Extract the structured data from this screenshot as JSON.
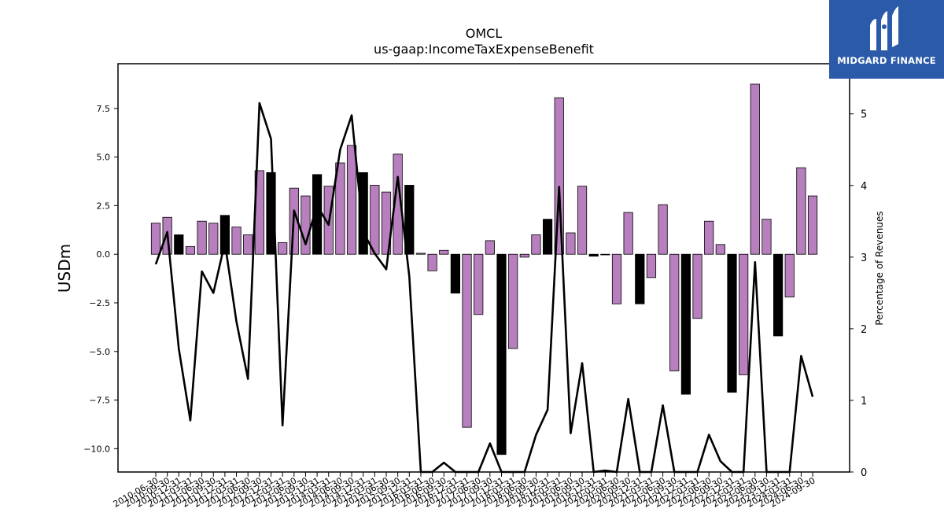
{
  "brand": {
    "name": "MIDGARD FINANCE"
  },
  "chart_data": {
    "type": "bar",
    "title": "OMCL",
    "subtitle": "us-gaap:IncomeTaxExpenseBenefit",
    "ylabel": "USDm",
    "y2label": "Percentage of Revenues",
    "ylim": [
      -11.2,
      9.8
    ],
    "y2lim": [
      0,
      5.7
    ],
    "yticks": [
      -10.0,
      -7.5,
      -5.0,
      -2.5,
      0.0,
      2.5,
      5.0,
      7.5
    ],
    "y2ticks": [
      0,
      1,
      2,
      3,
      4,
      5
    ],
    "colors": {
      "annual": "#000000",
      "quarter": "#b77fbd",
      "line": "#000000"
    },
    "categories": [
      "2010-06-30",
      "2010-09-30",
      "2010-12-31",
      "2011-03-31",
      "2011-06-30",
      "2011-09-30",
      "2011-12-31",
      "2012-03-31",
      "2012-06-30",
      "2012-09-30",
      "2012-12-31",
      "2013-03-31",
      "2013-06-30",
      "2013-09-30",
      "2013-12-31",
      "2014-03-31",
      "2014-06-30",
      "2014-09-30",
      "2014-12-31",
      "2015-03-31",
      "2015-06-30",
      "2015-09-30",
      "2015-12-31",
      "2016-03-31",
      "2016-06-30",
      "2016-09-30",
      "2016-12-31",
      "2017-03-31",
      "2017-06-30",
      "2017-09-30",
      "2017-12-31",
      "2018-03-31",
      "2018-06-30",
      "2018-09-30",
      "2018-12-31",
      "2019-03-31",
      "2019-06-30",
      "2019-09-30",
      "2019-12-31",
      "2020-03-31",
      "2020-06-30",
      "2020-09-30",
      "2020-12-31",
      "2021-03-31",
      "2021-06-30",
      "2021-09-30",
      "2021-12-31",
      "2022-03-31",
      "2022-06-30",
      "2022-09-30",
      "2022-12-31",
      "2023-03-31",
      "2023-06-30",
      "2023-09-30",
      "2023-12-31",
      "2024-03-31",
      "2024-06-30",
      "2024-09-30"
    ],
    "values": [
      1.6,
      1.9,
      1.0,
      0.4,
      1.7,
      1.6,
      2.0,
      1.4,
      1.0,
      4.3,
      4.2,
      0.6,
      3.4,
      3.0,
      4.1,
      3.5,
      4.7,
      5.6,
      4.2,
      3.55,
      3.2,
      5.15,
      3.55,
      0.05,
      -0.85,
      0.2,
      -2.0,
      -8.9,
      -3.1,
      0.7,
      -10.3,
      -4.85,
      -0.15,
      1.0,
      1.8,
      8.05,
      1.1,
      3.5,
      -0.1,
      0.0,
      -2.55,
      2.15,
      -2.55,
      -1.2,
      2.55,
      -6.0,
      -7.2,
      -3.3,
      1.7,
      0.5,
      -7.1,
      -6.2,
      8.75,
      1.8,
      -4.2,
      -2.2,
      4.45,
      3.0
    ],
    "annual": [
      false,
      false,
      true,
      false,
      false,
      false,
      true,
      false,
      false,
      false,
      true,
      false,
      false,
      false,
      true,
      false,
      false,
      false,
      true,
      false,
      false,
      false,
      true,
      false,
      false,
      false,
      true,
      false,
      false,
      false,
      true,
      false,
      false,
      false,
      true,
      false,
      false,
      false,
      true,
      false,
      false,
      false,
      true,
      false,
      false,
      false,
      true,
      false,
      false,
      false,
      true,
      false,
      false,
      false,
      true,
      false,
      false,
      false
    ],
    "pct_of_revenues": [
      2.9,
      3.35,
      1.72,
      0.72,
      2.8,
      2.5,
      3.2,
      2.1,
      1.3,
      5.15,
      4.65,
      0.65,
      3.65,
      3.18,
      3.72,
      3.45,
      4.5,
      4.98,
      3.35,
      3.05,
      2.83,
      4.12,
      2.73,
      0.0,
      0.0,
      0.13,
      0.0,
      0.0,
      0.0,
      0.4,
      0.0,
      0.0,
      0.0,
      0.52,
      0.87,
      3.98,
      0.54,
      1.52,
      0.0,
      0.02,
      0.0,
      1.02,
      0.0,
      0.0,
      0.93,
      0.0,
      0.0,
      0.0,
      0.52,
      0.15,
      0.0,
      0.0,
      2.93,
      0.0,
      0.0,
      0.0,
      1.62,
      1.05
    ]
  }
}
